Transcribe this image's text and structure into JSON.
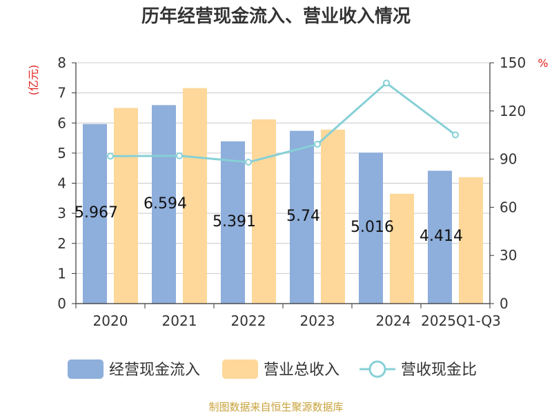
{
  "chart_data": {
    "type": "bar",
    "title": "历年经营现金流入、营业收入情况",
    "categories": [
      "2020",
      "2021",
      "2022",
      "2023",
      "2024",
      "2025Q1-Q3"
    ],
    "series": [
      {
        "name": "经营现金流入",
        "axis": "left",
        "kind": "bar",
        "color": "#8eaedb",
        "values": [
          5.967,
          6.594,
          5.391,
          5.74,
          5.016,
          4.414
        ],
        "labels": [
          "5.967",
          "6.594",
          "5.391",
          "5.74",
          "5.016",
          "4.414"
        ]
      },
      {
        "name": "营业总收入",
        "axis": "left",
        "kind": "bar",
        "color": "#fdd89a",
        "values": [
          6.5,
          7.16,
          6.12,
          5.78,
          3.65,
          4.2
        ]
      },
      {
        "name": "营收现金比",
        "axis": "right",
        "kind": "line",
        "color": "#86d0d6",
        "values": [
          91.8,
          92.1,
          88.1,
          99.3,
          137.4,
          105.1
        ]
      }
    ],
    "y_left": {
      "unit": "(亿元)",
      "min": 0,
      "max": 8,
      "ticks": [
        "0",
        "1",
        "2",
        "3",
        "4",
        "5",
        "6",
        "7",
        "8"
      ]
    },
    "y_right": {
      "unit": "%",
      "min": 0,
      "max": 150,
      "ticks": [
        "0",
        "30",
        "60",
        "90",
        "120",
        "150"
      ]
    },
    "grid": true,
    "legend_position": "bottom"
  },
  "source": "制图数据来自恒生聚源数据库"
}
